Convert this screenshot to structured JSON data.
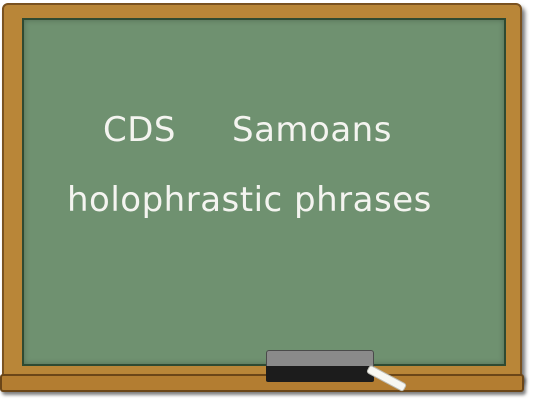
{
  "chalkboard": {
    "line1": [
      "CDS",
      "Samoans"
    ],
    "line2": "holophrastic phrases"
  },
  "colors": {
    "board": "#6f9170",
    "frame": "#b98638",
    "chalk": "#f4f4f0"
  }
}
